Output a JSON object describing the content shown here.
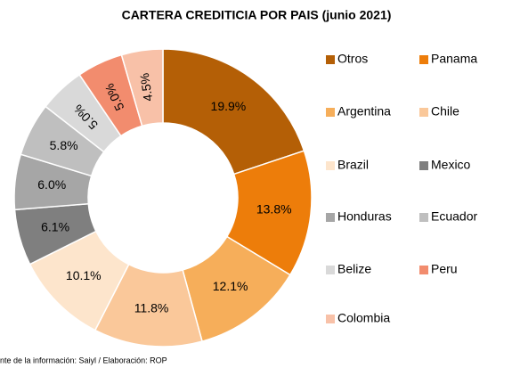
{
  "chart_data": {
    "type": "donut",
    "title": "CARTERA CREDITICIA POR PAIS (junio 2021)",
    "categories": [
      "Otros",
      "Panama",
      "Argentina",
      "Chile",
      "Brazil",
      "Mexico",
      "Honduras",
      "Ecuador",
      "Belize",
      "Peru",
      "Colombia"
    ],
    "values": [
      19.9,
      13.8,
      12.1,
      11.8,
      10.1,
      6.1,
      6.0,
      5.8,
      5.0,
      5.0,
      4.5
    ],
    "value_labels": [
      "19.9%",
      "13.8%",
      "12.1%",
      "11.8%",
      "10.1%",
      "6.1%",
      "6.0%",
      "5.8%",
      "5.0%",
      "5.0%",
      "4.5%"
    ],
    "colors": [
      "#b45f06",
      "#ed7d0a",
      "#f6ae5a",
      "#fac89a",
      "#fde5cc",
      "#7f7f7f",
      "#a6a6a6",
      "#bfbfbf",
      "#d9d9d9",
      "#f28c6e",
      "#f8c1a8"
    ],
    "legend_position": "right",
    "source": "nte de la información: Saiyl / Elaboración: ROP"
  }
}
